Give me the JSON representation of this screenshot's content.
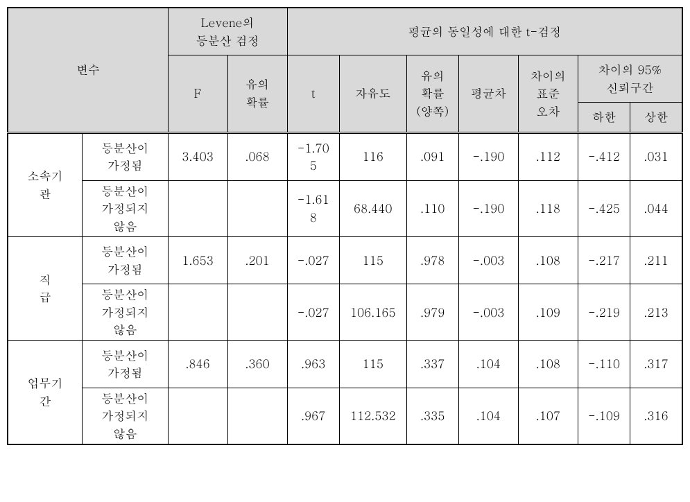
{
  "headers": {
    "variable": "변수",
    "levene": "Levene의\n등분산 검정",
    "ttest": "평균의 동일성에 대한 t-검정",
    "F": "F",
    "sig1": "유의\n확률",
    "t": "t",
    "df": "자유도",
    "sig2": "유의\n확률\n(양쪽)",
    "meandiff": "평균차",
    "sediff": "차이의\n표준\n오차",
    "ci": "차이의 95%\n신뢰구간",
    "lower": "하한",
    "upper": "상한"
  },
  "labels": {
    "eq": "등분산이\n가정됨",
    "neq": "등분산이\n가정되지\n않음"
  },
  "groups": [
    {
      "name": "소속기\n관",
      "rows": [
        {
          "F": "3.403",
          "sig1": ".068",
          "t": "-1.70\n5",
          "df": "116",
          "sig2": ".091",
          "mean": "-.190",
          "se": ".112",
          "low": "-.412",
          "high": ".031"
        },
        {
          "F": "",
          "sig1": "",
          "t": "-1.61\n8",
          "df": "68.440",
          "sig2": ".110",
          "mean": "-.190",
          "se": ".118",
          "low": "-.425",
          "high": ".044"
        }
      ]
    },
    {
      "name": "직\n급",
      "rows": [
        {
          "F": "1.653",
          "sig1": ".201",
          "t": "-.027",
          "df": "115",
          "sig2": ".978",
          "mean": "-.003",
          "se": ".108",
          "low": "-.217",
          "high": ".211"
        },
        {
          "F": "",
          "sig1": "",
          "t": "-.027",
          "df": "106.165",
          "sig2": ".979",
          "mean": "-.003",
          "se": ".109",
          "low": "-.219",
          "high": ".213"
        }
      ]
    },
    {
      "name": "업무기\n간",
      "rows": [
        {
          "F": ".846",
          "sig1": ".360",
          "t": ".963",
          "df": "115",
          "sig2": ".337",
          "mean": ".104",
          "se": ".108",
          "low": "-.110",
          "high": ".317"
        },
        {
          "F": "",
          "sig1": "",
          "t": ".967",
          "df": "112.532",
          "sig2": ".335",
          "mean": ".104",
          "se": ".107",
          "low": "-.109",
          "high": ".316"
        }
      ]
    }
  ]
}
